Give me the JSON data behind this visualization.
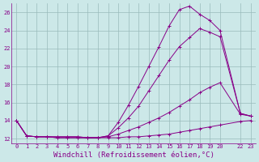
{
  "background_color": "#cce8e8",
  "line_color": "#880088",
  "grid_color": "#99bbbb",
  "xlabel": "Windchill (Refroidissement éolien,°C)",
  "xlabel_fontsize": 6.5,
  "xlim": [
    -0.5,
    23.5
  ],
  "ylim": [
    11.5,
    27.0
  ],
  "yticks": [
    12,
    14,
    16,
    18,
    20,
    22,
    24,
    26
  ],
  "xticks": [
    0,
    1,
    2,
    3,
    4,
    5,
    6,
    7,
    8,
    9,
    10,
    11,
    12,
    13,
    14,
    15,
    16,
    17,
    18,
    19,
    20,
    22,
    23
  ],
  "series": [
    {
      "x": [
        0,
        1,
        2,
        3,
        4,
        5,
        6,
        7,
        8,
        9,
        10,
        11,
        12,
        13,
        14,
        15,
        16,
        17,
        18,
        19,
        20,
        22,
        23
      ],
      "y": [
        14.0,
        12.3,
        12.2,
        12.2,
        12.1,
        12.1,
        12.1,
        12.1,
        12.1,
        12.1,
        12.1,
        12.2,
        12.2,
        12.3,
        12.4,
        12.5,
        12.7,
        12.9,
        13.1,
        13.3,
        13.5,
        13.9,
        14.0
      ]
    },
    {
      "x": [
        0,
        1,
        2,
        3,
        4,
        5,
        6,
        7,
        8,
        9,
        10,
        11,
        12,
        13,
        14,
        15,
        16,
        17,
        18,
        19,
        20,
        22,
        23
      ],
      "y": [
        14.0,
        12.3,
        12.2,
        12.2,
        12.1,
        12.1,
        12.1,
        12.1,
        12.1,
        12.2,
        12.5,
        12.9,
        13.3,
        13.8,
        14.3,
        14.9,
        15.6,
        16.3,
        17.1,
        17.7,
        18.2,
        14.7,
        14.5
      ]
    },
    {
      "x": [
        0,
        1,
        2,
        3,
        4,
        5,
        6,
        7,
        8,
        9,
        10,
        11,
        12,
        13,
        14,
        15,
        16,
        17,
        18,
        19,
        20,
        22,
        23
      ],
      "y": [
        14.0,
        12.3,
        12.2,
        12.2,
        12.2,
        12.2,
        12.2,
        12.1,
        12.1,
        12.3,
        13.2,
        14.3,
        15.6,
        17.3,
        19.0,
        20.7,
        22.2,
        23.2,
        24.2,
        23.8,
        23.3,
        14.8,
        14.5
      ]
    },
    {
      "x": [
        0,
        1,
        2,
        3,
        4,
        5,
        6,
        7,
        8,
        9,
        10,
        11,
        12,
        13,
        14,
        15,
        16,
        17,
        18,
        19,
        20,
        22,
        23
      ],
      "y": [
        14.0,
        12.3,
        12.2,
        12.2,
        12.2,
        12.2,
        12.2,
        12.1,
        12.1,
        12.3,
        13.8,
        15.7,
        17.8,
        20.0,
        22.2,
        24.5,
        26.3,
        26.7,
        25.8,
        25.1,
        24.0,
        14.8,
        14.5
      ]
    }
  ]
}
